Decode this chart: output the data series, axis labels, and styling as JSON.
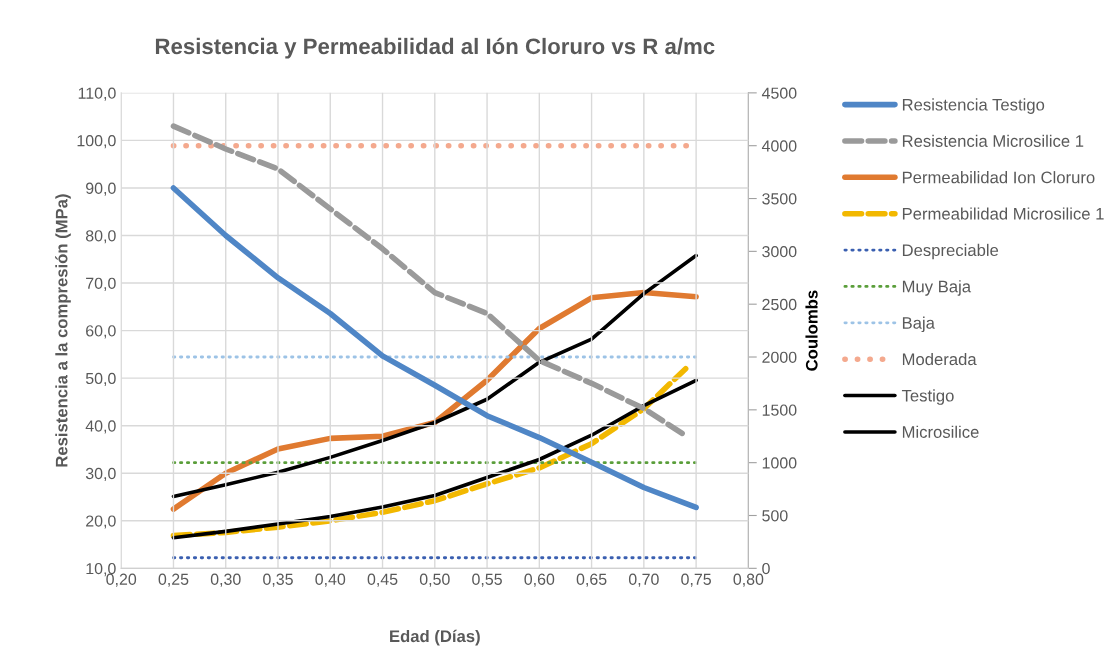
{
  "chart_data": {
    "type": "line",
    "title": "Resistencia y Permeabilidad al Ión Cloruro vs R a/mc",
    "xlabel": "Edad (Días)",
    "ylabel": "Resistencia a la compresión (MPa)",
    "y2label": "Coulombs",
    "x": [
      0.25,
      0.3,
      0.35,
      0.4,
      0.45,
      0.5,
      0.55,
      0.6,
      0.65,
      0.7,
      0.75
    ],
    "series": [
      {
        "name": "Resistencia Testigo",
        "color": "#4f86c6",
        "line_style": "solid",
        "values": [
          90,
          80,
          71.1,
          63.6,
          54.7,
          48.5,
          42.1,
          37.5,
          32.3,
          27,
          22.8
        ]
      },
      {
        "name": "Resistencia Microsilice 1",
        "color": "#9a9a9a",
        "line_style": "dashed",
        "x": [
          0.25,
          0.3,
          0.35,
          0.4,
          0.45,
          0.5,
          0.55,
          0.6,
          0.65,
          0.7,
          0.74
        ],
        "values": [
          103,
          98.2,
          94,
          85.6,
          77.2,
          68,
          63.6,
          53.7,
          48.9,
          43.6,
          37.9
        ]
      },
      {
        "name": "Permeabilidad Ion Cloruro",
        "color": "#e07a30",
        "line_style": "solid",
        "axis": "y2",
        "values": [
          560,
          900,
          1130,
          1230,
          1250,
          1380,
          1780,
          2270,
          2560,
          2610,
          2570
        ]
      },
      {
        "name": "Permeabilidad Microsilice 1",
        "color": "#f2b800",
        "line_style": "dashed",
        "axis": "y2",
        "x": [
          0.25,
          0.3,
          0.35,
          0.4,
          0.45,
          0.5,
          0.55,
          0.6,
          0.65,
          0.7,
          0.74
        ],
        "values": [
          310,
          340,
          390,
          450,
          530,
          640,
          800,
          950,
          1180,
          1510,
          1890
        ]
      },
      {
        "name": "Despreciable",
        "color": "#3a5fb0",
        "line_style": "dotted",
        "axis": "y2",
        "x": [
          0.25,
          0.75
        ],
        "values": [
          100,
          100
        ]
      },
      {
        "name": "Muy Baja",
        "color": "#5a9e3a",
        "line_style": "dotted",
        "axis": "y2",
        "x": [
          0.25,
          0.75
        ],
        "values": [
          1000,
          1000
        ]
      },
      {
        "name": "Baja",
        "color": "#9dc3e6",
        "line_style": "dotted",
        "axis": "y2",
        "x": [
          0.25,
          0.75
        ],
        "values": [
          2000,
          2000
        ]
      },
      {
        "name": "Moderada",
        "color": "#f4a98e",
        "line_style": "dotted",
        "axis": "y2",
        "x": [
          0.25,
          0.745
        ],
        "values": [
          4000,
          4000
        ]
      },
      {
        "name": "Testigo",
        "color": "#000000",
        "line_style": "solid",
        "axis": "y2",
        "values": [
          680,
          790,
          910,
          1050,
          1210,
          1380,
          1600,
          1950,
          2170,
          2600,
          2960
        ]
      },
      {
        "name": "Microsilice",
        "color": "#000000",
        "line_style": "solid",
        "axis": "y2",
        "values": [
          290,
          350,
          420,
          490,
          580,
          690,
          860,
          1030,
          1260,
          1540,
          1780
        ]
      }
    ],
    "xlim": [
      0.2,
      0.8
    ],
    "xticks": [
      {
        "value": 0.2,
        "label": "0,20"
      },
      {
        "value": 0.25,
        "label": "0,25"
      },
      {
        "value": 0.3,
        "label": "0,30"
      },
      {
        "value": 0.35,
        "label": "0,35"
      },
      {
        "value": 0.4,
        "label": "0,40"
      },
      {
        "value": 0.45,
        "label": "0,45"
      },
      {
        "value": 0.5,
        "label": "0,50"
      },
      {
        "value": 0.55,
        "label": "0,55"
      },
      {
        "value": 0.6,
        "label": "0,60"
      },
      {
        "value": 0.65,
        "label": "0,65"
      },
      {
        "value": 0.7,
        "label": "0,70"
      },
      {
        "value": 0.75,
        "label": "0,75"
      },
      {
        "value": 0.8,
        "label": "0,80"
      }
    ],
    "ylim": [
      10,
      110
    ],
    "yticks": [
      {
        "value": 10,
        "label": "10,0"
      },
      {
        "value": 20,
        "label": "20,0"
      },
      {
        "value": 30,
        "label": "30,0"
      },
      {
        "value": 40,
        "label": "40,0"
      },
      {
        "value": 50,
        "label": "50,0"
      },
      {
        "value": 60,
        "label": "60,0"
      },
      {
        "value": 70,
        "label": "70,0"
      },
      {
        "value": 80,
        "label": "80,0"
      },
      {
        "value": 90,
        "label": "90,0"
      },
      {
        "value": 100,
        "label": "100,0"
      },
      {
        "value": 110,
        "label": "110,0"
      }
    ],
    "y2lim": [
      0,
      4500
    ],
    "y2ticks": [
      0,
      500,
      1000,
      1500,
      2000,
      2500,
      3000,
      3500,
      4000,
      4500
    ],
    "grid": true,
    "legend": "right",
    "marker": "none"
  }
}
